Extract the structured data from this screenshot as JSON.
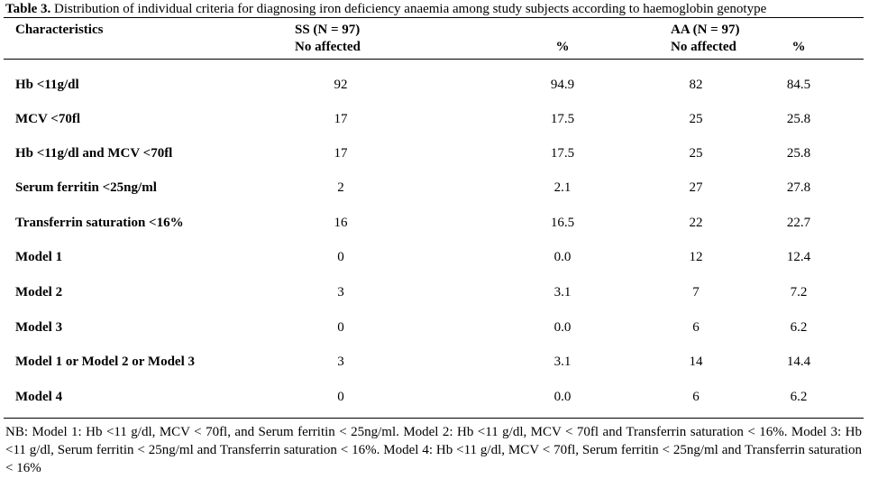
{
  "caption": {
    "label": "Table 3.",
    "text": " Distribution of individual criteria for diagnosing iron deficiency anaemia among study subjects according to haemoglobin genotype"
  },
  "header": {
    "characteristics": "Characteristics",
    "ss_group": "SS (N = 97)",
    "ss_count": "No affected",
    "ss_pct": "%",
    "aa_group": "AA (N = 97)",
    "aa_count": "No affected",
    "aa_pct": "%"
  },
  "rows": [
    {
      "label": "Hb <11g/dl",
      "ss_n": "92",
      "ss_pct": "94.9",
      "aa_n": "82",
      "aa_pct": "84.5"
    },
    {
      "label": "MCV <70fl",
      "ss_n": "17",
      "ss_pct": "17.5",
      "aa_n": "25",
      "aa_pct": "25.8"
    },
    {
      "label": "Hb <11g/dl and MCV <70fl",
      "ss_n": "17",
      "ss_pct": "17.5",
      "aa_n": "25",
      "aa_pct": "25.8"
    },
    {
      "label": "Serum ferritin <25ng/ml",
      "ss_n": "2",
      "ss_pct": "2.1",
      "aa_n": "27",
      "aa_pct": "27.8"
    },
    {
      "label": "Transferrin saturation <16%",
      "ss_n": "16",
      "ss_pct": "16.5",
      "aa_n": "22",
      "aa_pct": "22.7"
    },
    {
      "label": "Model 1",
      "ss_n": "0",
      "ss_pct": "0.0",
      "aa_n": "12",
      "aa_pct": "12.4"
    },
    {
      "label": "Model 2",
      "ss_n": "3",
      "ss_pct": "3.1",
      "aa_n": "7",
      "aa_pct": "7.2"
    },
    {
      "label": "Model 3",
      "ss_n": "0",
      "ss_pct": "0.0",
      "aa_n": "6",
      "aa_pct": "6.2"
    },
    {
      "label": "Model 1 or Model 2 or Model 3",
      "ss_n": "3",
      "ss_pct": "3.1",
      "aa_n": "14",
      "aa_pct": "14.4"
    },
    {
      "label": "Model 4",
      "ss_n": "0",
      "ss_pct": "0.0",
      "aa_n": "6",
      "aa_pct": "6.2"
    }
  ],
  "footnote": "NB: Model 1: Hb <11 g/dl, MCV < 70fl, and Serum ferritin < 25ng/ml. Model 2: Hb <11 g/dl, MCV < 70fl and Transferrin saturation < 16%. Model 3: Hb <11 g/dl, Serum ferritin < 25ng/ml and Transferrin saturation < 16%. Model 4: Hb <11 g/dl, MCV < 70fl, Serum ferritin < 25ng/ml and Transferrin saturation < 16%"
}
